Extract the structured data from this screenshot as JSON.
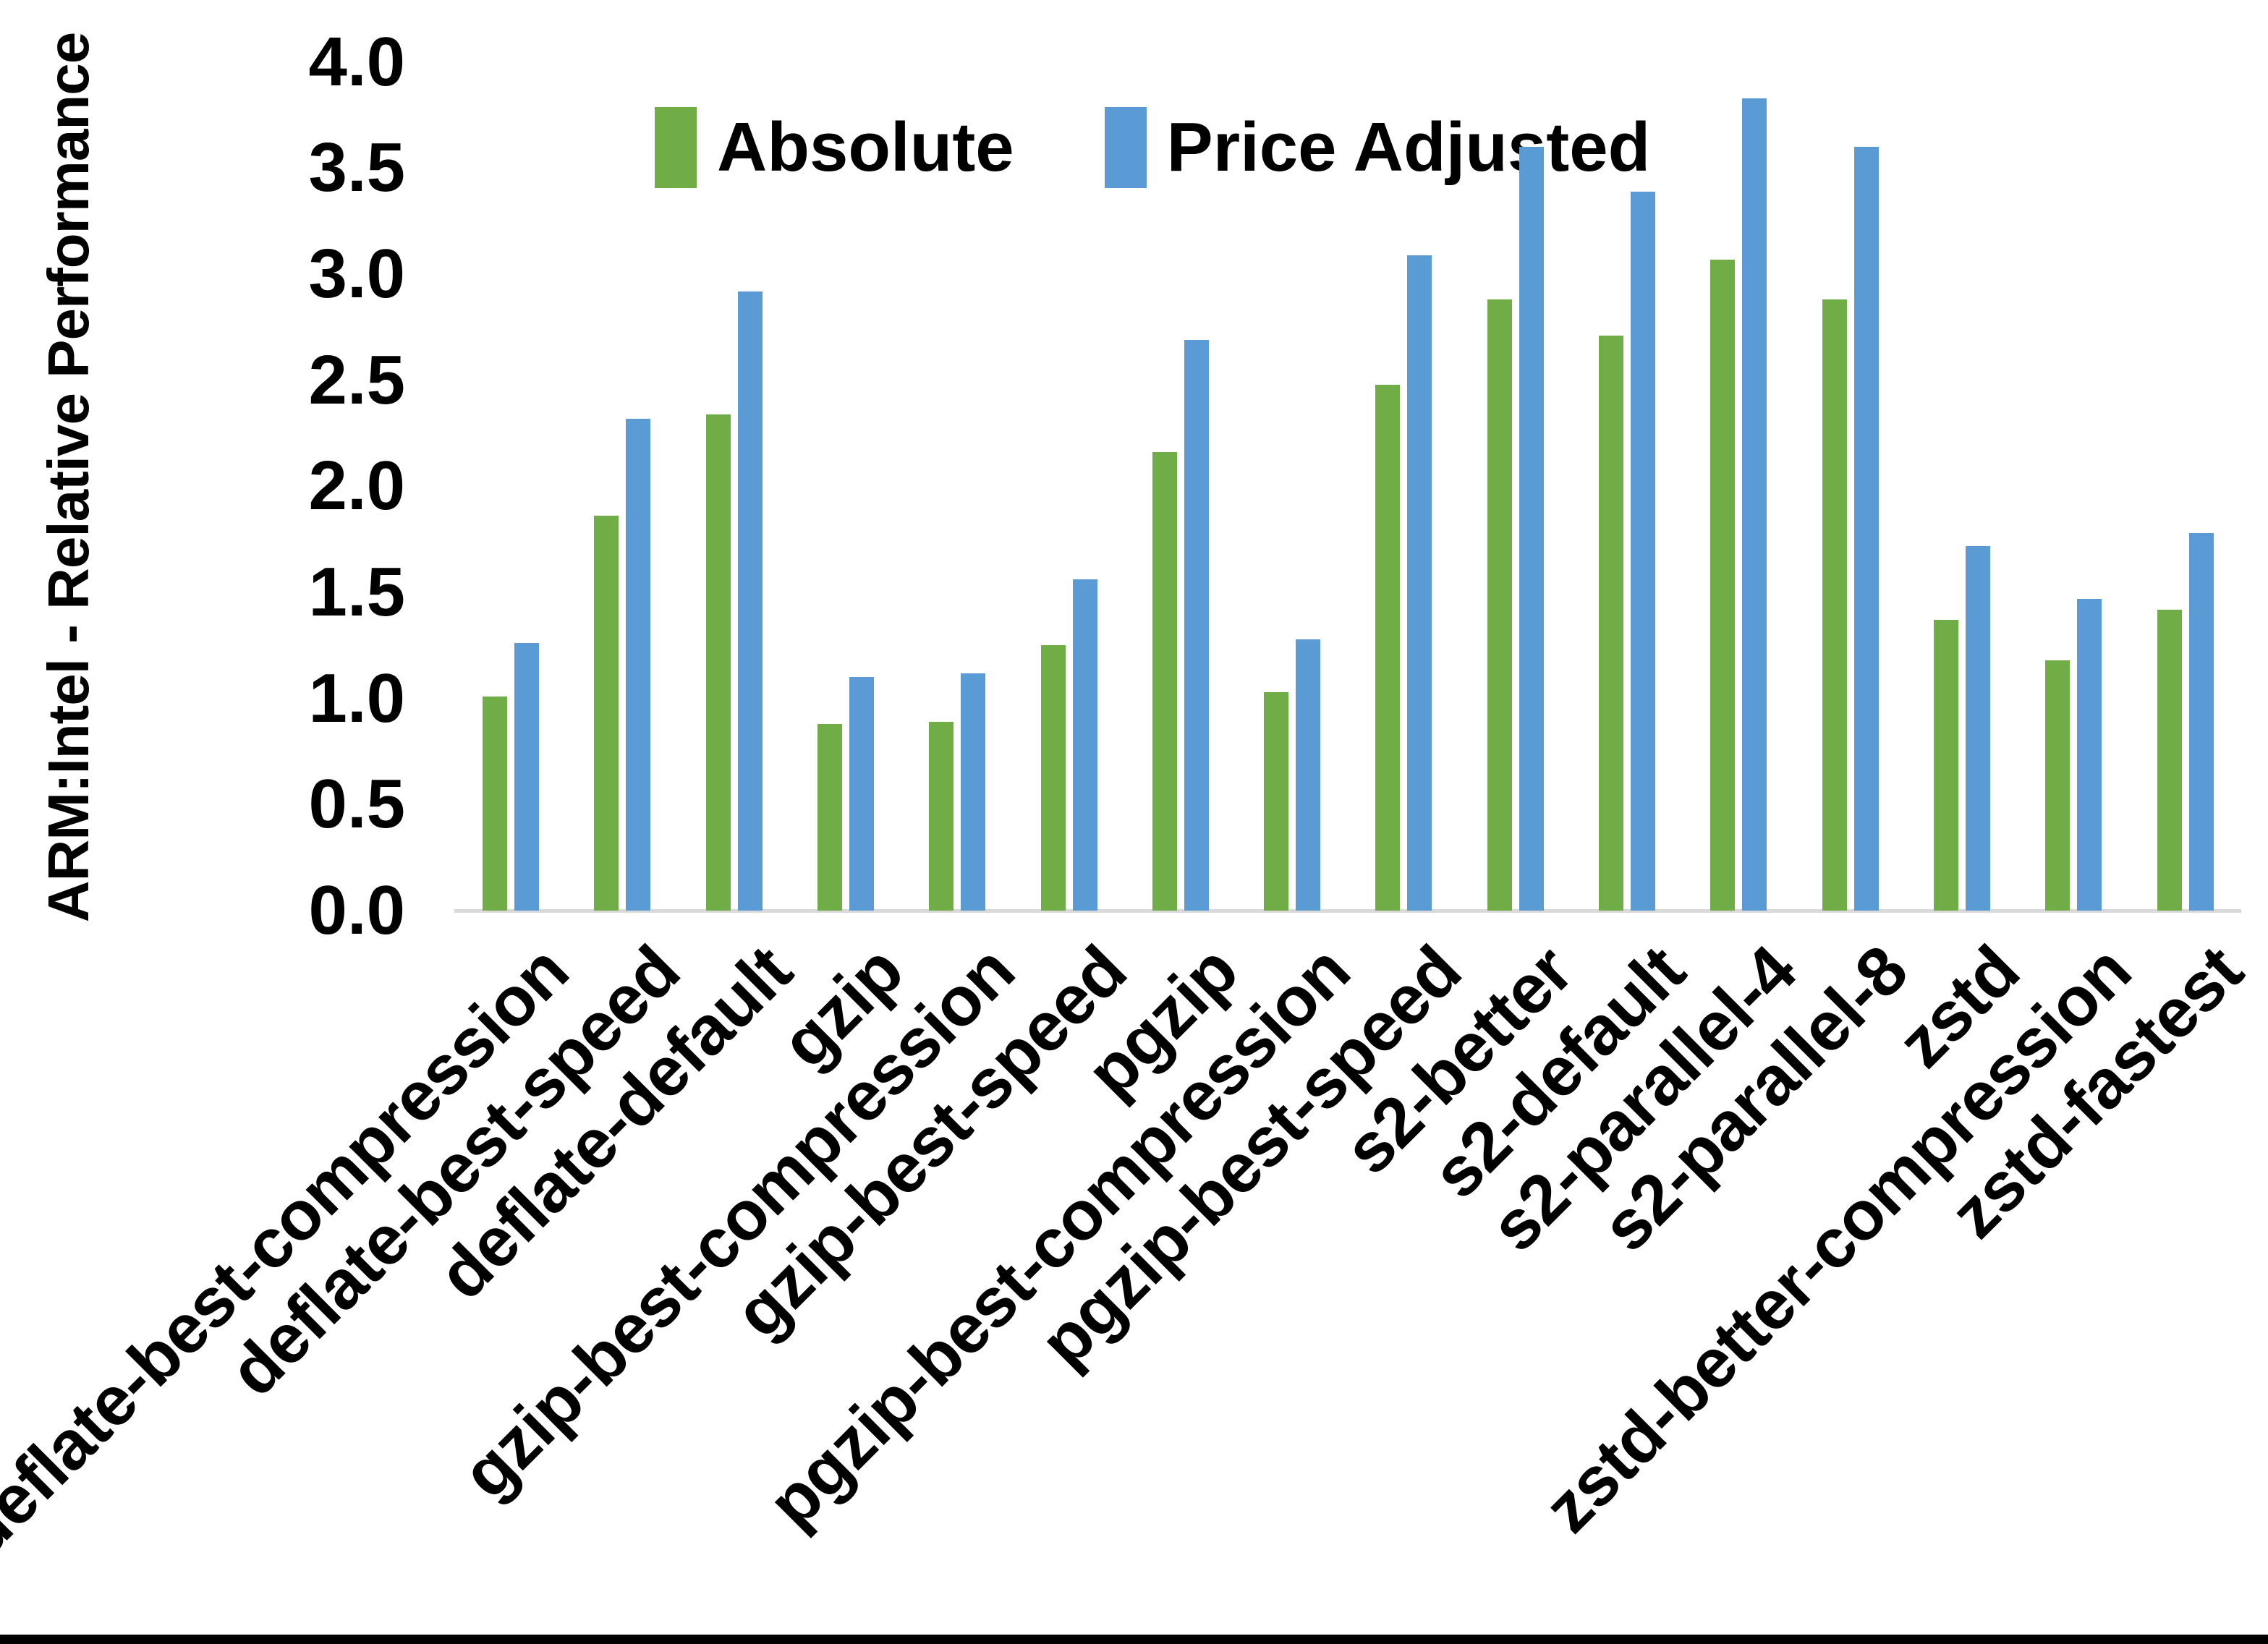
{
  "chart_data": {
    "type": "bar",
    "title": "",
    "xlabel": "",
    "ylabel": "ARM:Intel - Relative Performance",
    "ylim": [
      0.0,
      4.0
    ],
    "ytick_step": 0.5,
    "ytick_labels": [
      "0.0",
      "0.5",
      "1.0",
      "1.5",
      "2.0",
      "2.5",
      "3.0",
      "3.5",
      "4.0"
    ],
    "grid": false,
    "legend_position": "top-center",
    "axis_line_color": "#D9D9D9",
    "categories": [
      "deflate-best-compression",
      "deflate-best-speed",
      "deflate-default",
      "gzip",
      "gzip-best-compression",
      "gzip-best-speed",
      "pgzip",
      "pgzip-best-compression",
      "pgzip-best-speed",
      "s2-better",
      "s2-default",
      "s2-parallel-4",
      "s2-parallel-8",
      "zstd",
      "zstd-better-compression",
      "zstd-fastest"
    ],
    "series": [
      {
        "name": "Absolute",
        "color": "#70AD47",
        "values": [
          1.01,
          1.86,
          2.34,
          0.88,
          0.89,
          1.25,
          2.16,
          1.03,
          2.48,
          2.88,
          2.71,
          3.07,
          2.88,
          1.37,
          1.18,
          1.42
        ]
      },
      {
        "name": "Price Adjusted",
        "color": "#5B9BD5",
        "values": [
          1.26,
          2.32,
          2.92,
          1.1,
          1.12,
          1.56,
          2.69,
          1.28,
          3.09,
          3.6,
          3.39,
          3.83,
          3.6,
          1.72,
          1.47,
          1.78
        ]
      }
    ]
  }
}
